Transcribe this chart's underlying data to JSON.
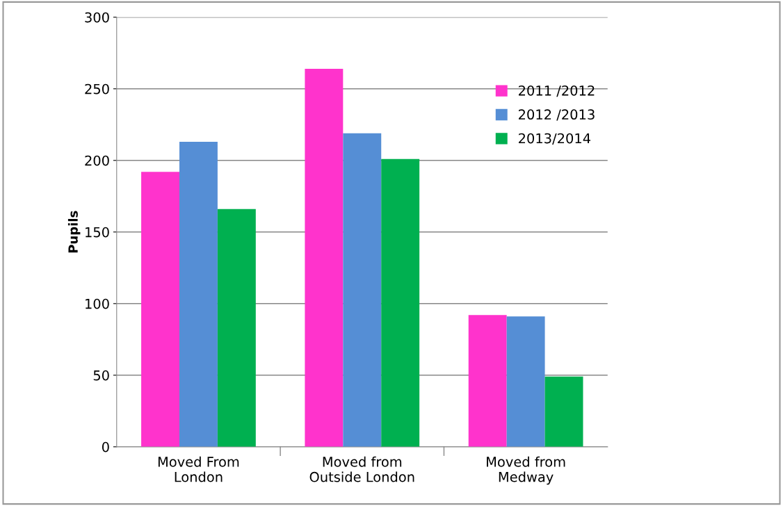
{
  "chart_data": {
    "type": "bar",
    "ylabel": "Pupils",
    "categories": [
      "Moved From\nLondon",
      "Moved from\nOutside London",
      "Moved from\nMedway"
    ],
    "series": [
      {
        "name": "2011 /2012",
        "color": "#ff33cc",
        "values": [
          192,
          264,
          92
        ]
      },
      {
        "name": "2012 /2013",
        "color": "#558ed5",
        "values": [
          213,
          219,
          91
        ]
      },
      {
        "name": "2013/2014",
        "color": "#00b050",
        "values": [
          166,
          201,
          49
        ]
      }
    ],
    "ylim": [
      0,
      300
    ],
    "yticks": [
      0,
      50,
      100,
      150,
      200,
      250,
      300
    ],
    "grid": "y",
    "legend": "top right"
  }
}
